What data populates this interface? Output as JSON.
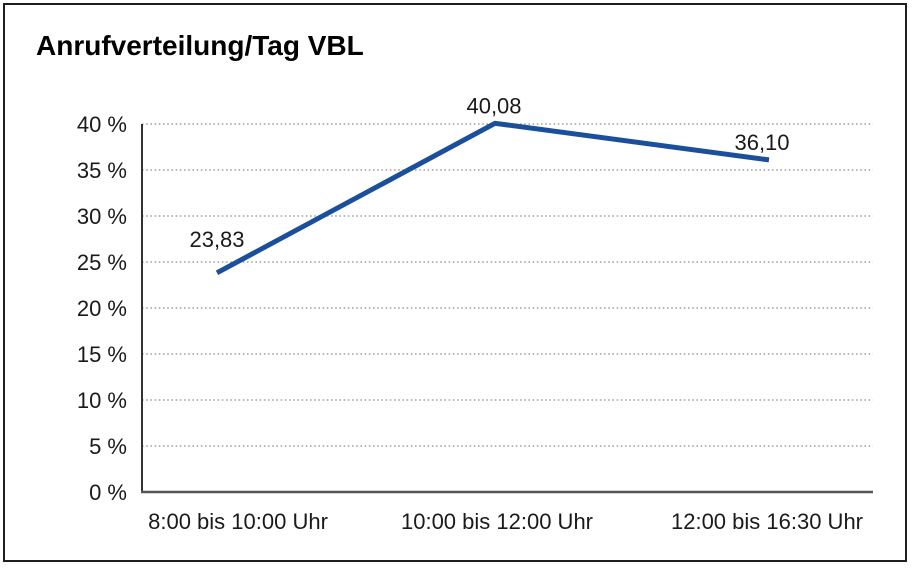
{
  "window": {
    "background": "#ffffff",
    "border_color": "#1f1f1f"
  },
  "chart_data": {
    "type": "line",
    "title": "Anrufverteilung/Tag VBL",
    "categories": [
      "8:00 bis 10:00 Uhr",
      "10:00 bis 12:00 Uhr",
      "12:00 bis 16:30 Uhr"
    ],
    "series": [
      {
        "values": [
          23.83,
          40.08,
          36.1
        ],
        "value_labels": [
          "23,83",
          "40,08",
          "36,10"
        ],
        "color": "#1a4f9b"
      }
    ],
    "xlabel": "",
    "ylabel": "",
    "ylim": [
      0,
      40
    ],
    "y_tick_step": 5,
    "y_tick_labels": [
      "0 %",
      "5 %",
      "10 %",
      "15 %",
      "20 %",
      "25 %",
      "30 %",
      "35 %",
      "40 %"
    ],
    "grid": "horizontal dotted",
    "legend_position": "none",
    "colors": {
      "line": "#1a4f9b",
      "grid": "#8f8f8f",
      "y_axis": "#333333",
      "x_axis": "#555555",
      "text": "#1a1a1a",
      "title": "#000000"
    }
  }
}
